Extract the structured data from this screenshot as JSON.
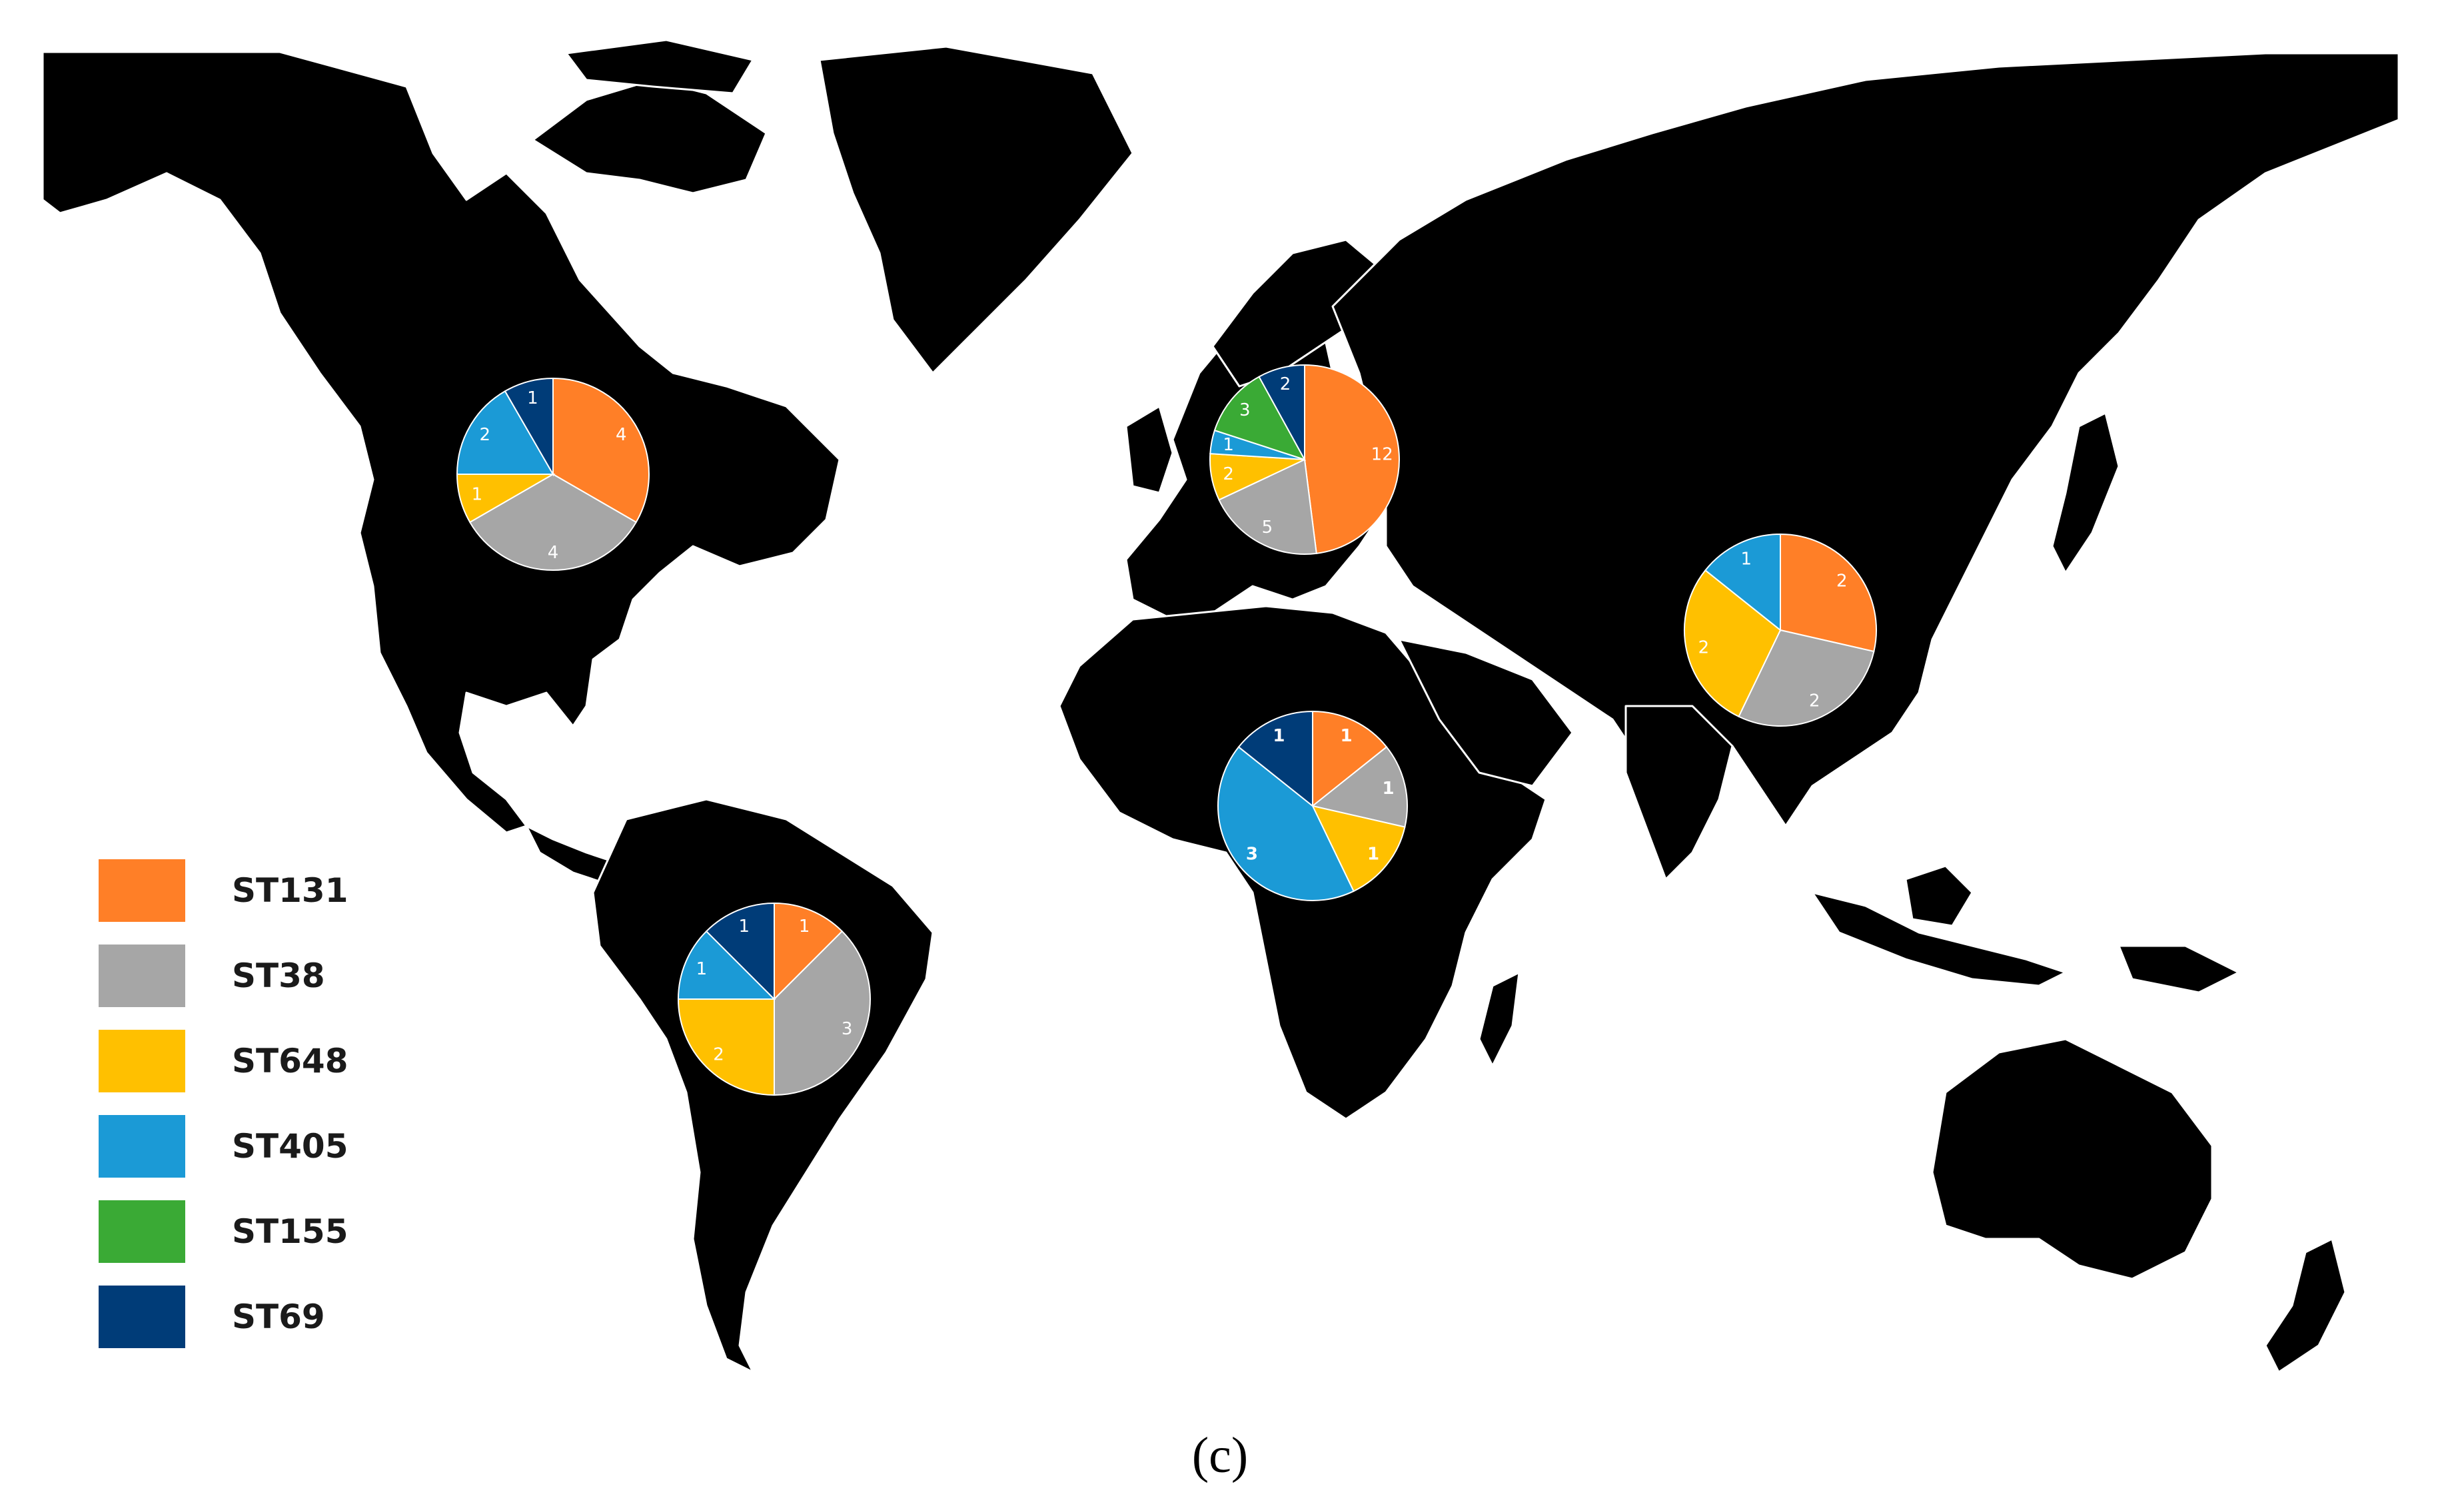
{
  "colors": {
    "ST131": "#FF7F27",
    "ST38": "#A6A6A6",
    "ST648": "#FFC000",
    "ST405": "#1B9AD6",
    "ST155": "#3AAA35",
    "ST69": "#003C78",
    "land": "#000000",
    "border": "#FFFFFF"
  },
  "legend": [
    {
      "key": "ST131",
      "label": "ST131"
    },
    {
      "key": "ST38",
      "label": "ST38"
    },
    {
      "key": "ST648",
      "label": "ST648"
    },
    {
      "key": "ST405",
      "label": "ST405"
    },
    {
      "key": "ST155",
      "label": "ST155"
    },
    {
      "key": "ST69",
      "label": "ST69"
    }
  ],
  "caption": "(c)",
  "chart_data": [
    {
      "type": "pie",
      "region": "North America",
      "slices": [
        {
          "name": "ST131",
          "value": 4,
          "label": "4"
        },
        {
          "name": "ST38",
          "value": 4,
          "label": "4"
        },
        {
          "name": "ST648",
          "value": 1,
          "label": "1"
        },
        {
          "name": "ST405",
          "value": 2,
          "label": "2"
        },
        {
          "name": "ST69",
          "value": 1,
          "label": "1"
        }
      ]
    },
    {
      "type": "pie",
      "region": "Europe",
      "slices": [
        {
          "name": "ST131",
          "value": 12,
          "label": "12"
        },
        {
          "name": "ST38",
          "value": 5,
          "label": "5"
        },
        {
          "name": "ST648",
          "value": 2,
          "label": "2"
        },
        {
          "name": "ST405",
          "value": 1,
          "label": "1"
        },
        {
          "name": "ST155",
          "value": 3,
          "label": "3"
        },
        {
          "name": "ST69",
          "value": 2,
          "label": "2"
        }
      ]
    },
    {
      "type": "pie",
      "region": "Asia",
      "slices": [
        {
          "name": "ST131",
          "value": 2,
          "label": "2"
        },
        {
          "name": "ST38",
          "value": 2,
          "label": "2"
        },
        {
          "name": "ST648",
          "value": 2,
          "label": "2"
        },
        {
          "name": "ST405",
          "value": 1,
          "label": "1"
        }
      ]
    },
    {
      "type": "pie",
      "region": "Africa",
      "bold_labels": true,
      "slices": [
        {
          "name": "ST131",
          "value": 1,
          "label": "1"
        },
        {
          "name": "ST38",
          "value": 1,
          "label": "1"
        },
        {
          "name": "ST648",
          "value": 1,
          "label": "1"
        },
        {
          "name": "ST405",
          "value": 3,
          "label": "3"
        },
        {
          "name": "ST69",
          "value": 1,
          "label": "1"
        }
      ]
    },
    {
      "type": "pie",
      "region": "South America",
      "slices": [
        {
          "name": "ST131",
          "value": 1,
          "label": "1"
        },
        {
          "name": "ST38",
          "value": 3,
          "label": "3"
        },
        {
          "name": "ST648",
          "value": 2,
          "label": "2"
        },
        {
          "name": "ST405",
          "value": 1,
          "label": "1"
        },
        {
          "name": "ST69",
          "value": 1,
          "label": "1"
        }
      ]
    }
  ]
}
